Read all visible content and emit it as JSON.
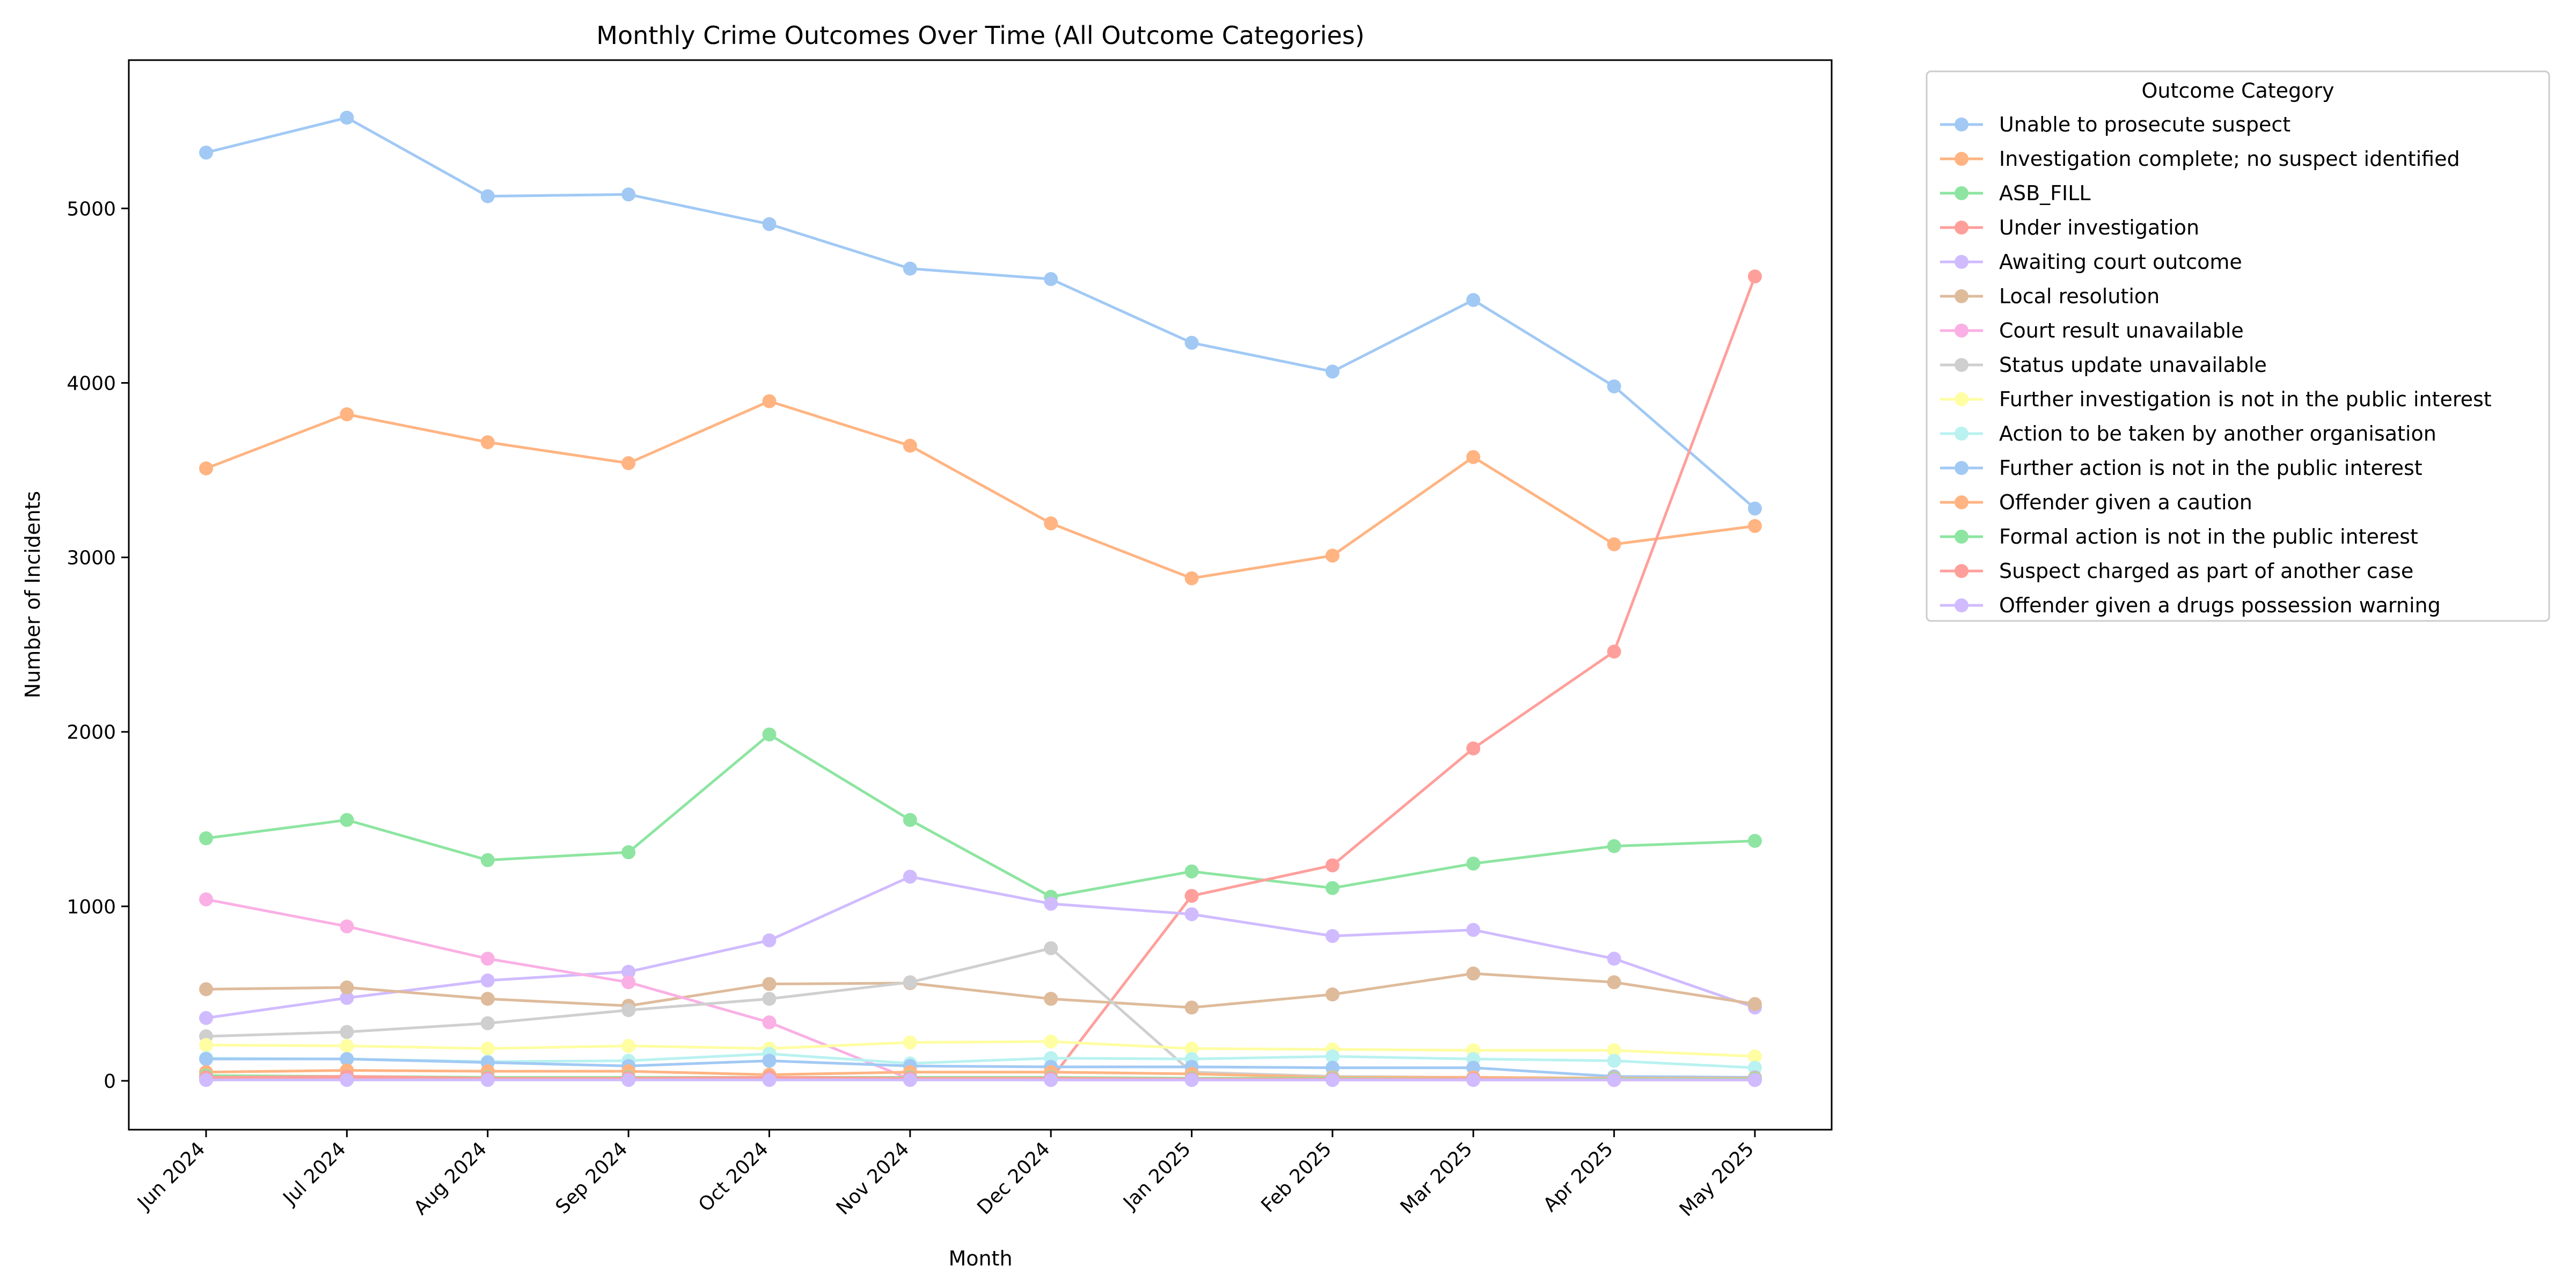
{
  "chart_data": {
    "type": "line",
    "title": "Monthly Crime Outcomes Over Time (All Outcome Categories)",
    "xlabel": "Month",
    "ylabel": "Number of Incidents",
    "ylim": [
      -280,
      5850
    ],
    "yticks": [
      0,
      1000,
      2000,
      3000,
      4000,
      5000
    ],
    "categories": [
      "Jun 2024",
      "Jul 2024",
      "Aug 2024",
      "Sep 2024",
      "Oct 2024",
      "Nov 2024",
      "Dec 2024",
      "Jan 2025",
      "Feb 2025",
      "Mar 2025",
      "Apr 2025",
      "May 2025"
    ],
    "grid": false,
    "legend": {
      "title": "Outcome Category",
      "placement": "outside-right-top"
    },
    "series": [
      {
        "name": "Unable to prosecute suspect",
        "color": "#a1c9f4",
        "values": [
          5320,
          5520,
          5070,
          5080,
          4910,
          4655,
          4595,
          4230,
          4065,
          4475,
          3980,
          3280
        ]
      },
      {
        "name": "Investigation complete; no suspect identified",
        "color": "#ffb482",
        "values": [
          3510,
          3820,
          3660,
          3540,
          3895,
          3640,
          3195,
          2880,
          3010,
          3575,
          3075,
          3180
        ]
      },
      {
        "name": "ASB_FILL",
        "color": "#8de5a1",
        "values": [
          1390,
          1495,
          1265,
          1310,
          1985,
          1495,
          1055,
          1200,
          1105,
          1245,
          1345,
          1375
        ]
      },
      {
        "name": "Under investigation",
        "color": "#ff9f9b",
        "values": [
          15,
          10,
          10,
          10,
          10,
          10,
          10,
          1060,
          1235,
          1905,
          2460,
          4610
        ]
      },
      {
        "name": "Awaiting court outcome",
        "color": "#d0bbff",
        "values": [
          360,
          475,
          575,
          625,
          805,
          1170,
          1015,
          955,
          830,
          865,
          700,
          420
        ]
      },
      {
        "name": "Local resolution",
        "color": "#debb9b",
        "values": [
          525,
          535,
          470,
          430,
          555,
          560,
          470,
          420,
          495,
          615,
          565,
          440
        ]
      },
      {
        "name": "Court result unavailable",
        "color": "#fab0e4",
        "values": [
          1040,
          885,
          700,
          565,
          335,
          10,
          5,
          5,
          5,
          5,
          5,
          5
        ]
      },
      {
        "name": "Status update unavailable",
        "color": "#cfcfcf",
        "values": [
          255,
          280,
          330,
          405,
          470,
          565,
          760,
          50,
          25,
          20,
          15,
          10
        ]
      },
      {
        "name": "Further investigation is not in the public interest",
        "color": "#fffea3",
        "values": [
          205,
          200,
          185,
          200,
          185,
          220,
          225,
          185,
          180,
          175,
          175,
          140
        ]
      },
      {
        "name": "Action to be taken by another organisation",
        "color": "#b9f2f0",
        "values": [
          130,
          125,
          110,
          115,
          155,
          100,
          130,
          125,
          140,
          125,
          115,
          75
        ]
      },
      {
        "name": "Further action is not in the public interest",
        "color": "#a1c9f4",
        "values": [
          125,
          125,
          105,
          85,
          115,
          85,
          80,
          80,
          75,
          75,
          25,
          20
        ]
      },
      {
        "name": "Offender given a caution",
        "color": "#ffb482",
        "values": [
          50,
          60,
          55,
          55,
          35,
          50,
          50,
          40,
          20,
          20,
          15,
          15
        ]
      },
      {
        "name": "Formal action is not in the public interest",
        "color": "#8de5a1",
        "values": [
          30,
          25,
          20,
          20,
          20,
          20,
          20,
          15,
          15,
          10,
          10,
          10
        ]
      },
      {
        "name": "Suspect charged as part of another case",
        "color": "#ff9f9b",
        "values": [
          20,
          25,
          15,
          15,
          20,
          15,
          15,
          10,
          10,
          10,
          5,
          5
        ]
      },
      {
        "name": "Offender given a drugs possession warning",
        "color": "#d0bbff",
        "values": [
          5,
          5,
          5,
          5,
          5,
          5,
          5,
          5,
          5,
          5,
          5,
          5
        ]
      }
    ]
  }
}
